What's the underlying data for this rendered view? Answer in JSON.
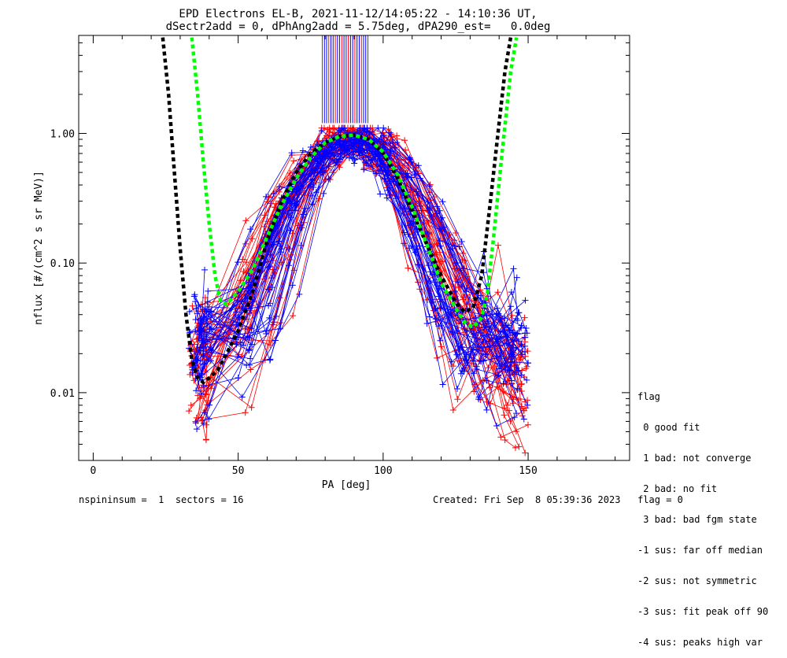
{
  "title_line1": "EPD Electrons EL-B, 2021-11-12/14:05:22 - 14:10:36 UT,",
  "title_line2": "dSectr2add = 0, dPhAng2add = 5.75deg, dPA290_est=   0.0deg",
  "footer_left": "nspininsum =  1  sectors = 16",
  "footer_right": "Created: Fri Sep  8 05:39:36 2023   flag = 0",
  "legend": {
    "title": "flag",
    "items": [
      " 0 good fit",
      " 1 bad: not converge",
      " 2 bad: no fit",
      " 3 bad: bad fgm state",
      "-1 sus: far off median",
      "-2 sus: not symmetric",
      "-3 sus: fit peak off 90",
      "-4 sus: peaks high var"
    ]
  },
  "chart_data": {
    "type": "line",
    "xlabel": "PA [deg]",
    "ylabel": "nflux [#/(cm^2 s sr MeV)]",
    "xlim": [
      -5,
      185
    ],
    "ylim": [
      0.003,
      5.7
    ],
    "yscale": "log",
    "xticks": [
      0,
      50,
      100,
      150
    ],
    "xticklabels": [
      "0",
      "50",
      "100",
      "150"
    ],
    "yticks": [
      0.01,
      0.1,
      1.0
    ],
    "yticklabels": [
      "0.01",
      "0.10",
      "1.00"
    ],
    "series": [
      {
        "color": "#000000",
        "style": "dashed-thick",
        "x": [
          24,
          26,
          28,
          30,
          32,
          34,
          36,
          38,
          40,
          43,
          46,
          50,
          55,
          60,
          65,
          70,
          75,
          80,
          85,
          90,
          95,
          100,
          105,
          110,
          115,
          120,
          125,
          128,
          131,
          134,
          137,
          140,
          142,
          144
        ],
        "y": [
          5.5,
          2.0,
          0.5,
          0.13,
          0.04,
          0.018,
          0.013,
          0.012,
          0.013,
          0.015,
          0.02,
          0.03,
          0.06,
          0.15,
          0.3,
          0.5,
          0.7,
          0.85,
          0.95,
          0.97,
          0.9,
          0.7,
          0.45,
          0.25,
          0.14,
          0.08,
          0.05,
          0.042,
          0.045,
          0.08,
          0.3,
          1.2,
          3.0,
          5.5
        ]
      },
      {
        "color": "#00ff00",
        "style": "dashed-thick",
        "x": [
          34,
          36,
          38,
          40,
          42,
          44,
          46,
          50,
          55,
          60,
          65,
          70,
          75,
          80,
          85,
          90,
          95,
          100,
          105,
          110,
          115,
          120,
          125,
          128,
          131,
          134,
          136,
          138,
          141,
          144,
          146
        ],
        "y": [
          5.5,
          2.0,
          0.6,
          0.2,
          0.08,
          0.05,
          0.048,
          0.06,
          0.09,
          0.16,
          0.28,
          0.45,
          0.65,
          0.85,
          0.95,
          0.97,
          0.9,
          0.72,
          0.48,
          0.27,
          0.14,
          0.07,
          0.045,
          0.035,
          0.032,
          0.038,
          0.06,
          0.15,
          0.7,
          3.0,
          5.5
        ]
      }
    ],
    "scatter_red_count": 40,
    "scatter_blue_count": 40
  }
}
